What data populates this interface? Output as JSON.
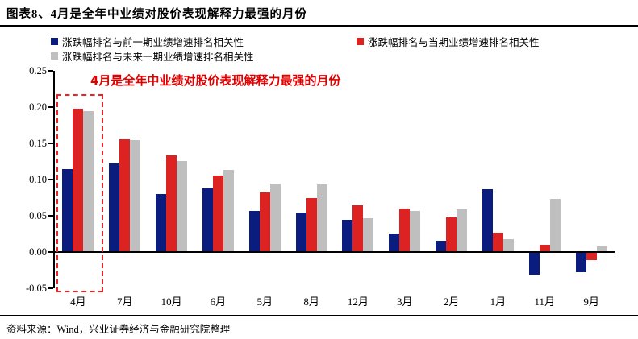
{
  "header": {
    "title": "图表8、4月是全年中业绩对股价表现解释力最强的月份"
  },
  "annotation": {
    "text": "4月是全年中业绩对股价表现解释力最强的月份",
    "color": "#E00000"
  },
  "footer": {
    "source": "资料来源：Wind，兴业证券经济与金融研究院整理"
  },
  "chart_data": {
    "type": "bar",
    "title": "4月是全年中业绩对股价表现解释力最强的月份",
    "categories": [
      "4月",
      "7月",
      "10月",
      "6月",
      "5月",
      "8月",
      "12月",
      "3月",
      "2月",
      "1月",
      "11月",
      "9月"
    ],
    "series": [
      {
        "name": "涨跌幅排名与前一期业绩增速排名相关性",
        "color": "#0A1C7E",
        "values": [
          0.115,
          0.122,
          0.08,
          0.088,
          0.057,
          0.055,
          0.044,
          0.026,
          0.016,
          0.087,
          -0.031,
          -0.028
        ]
      },
      {
        "name": "涨跌幅排名与当期业绩增速排名相关性",
        "color": "#DD2222",
        "values": [
          0.198,
          0.156,
          0.133,
          0.106,
          0.082,
          0.074,
          0.065,
          0.06,
          0.048,
          0.027,
          0.01,
          -0.011
        ]
      },
      {
        "name": "涨跌幅排名与未来一期业绩增速排名相关性",
        "color": "#BFBFBF",
        "values": [
          0.195,
          0.154,
          0.126,
          0.113,
          0.094,
          0.093,
          0.047,
          0.057,
          0.059,
          0.018,
          0.073,
          0.008
        ]
      }
    ],
    "ylim": [
      -0.05,
      0.25
    ],
    "yticks": [
      0.25,
      0.2,
      0.15,
      0.1,
      0.05,
      0.0,
      -0.05
    ],
    "ytick_labels": [
      "0.25",
      "0.20",
      "0.15",
      "0.10",
      "0.05",
      "0.00",
      "-0.05"
    ],
    "grid": false,
    "legend_position": "top",
    "highlight": {
      "category": "4月",
      "style": "red-dashed-rectangle"
    }
  }
}
